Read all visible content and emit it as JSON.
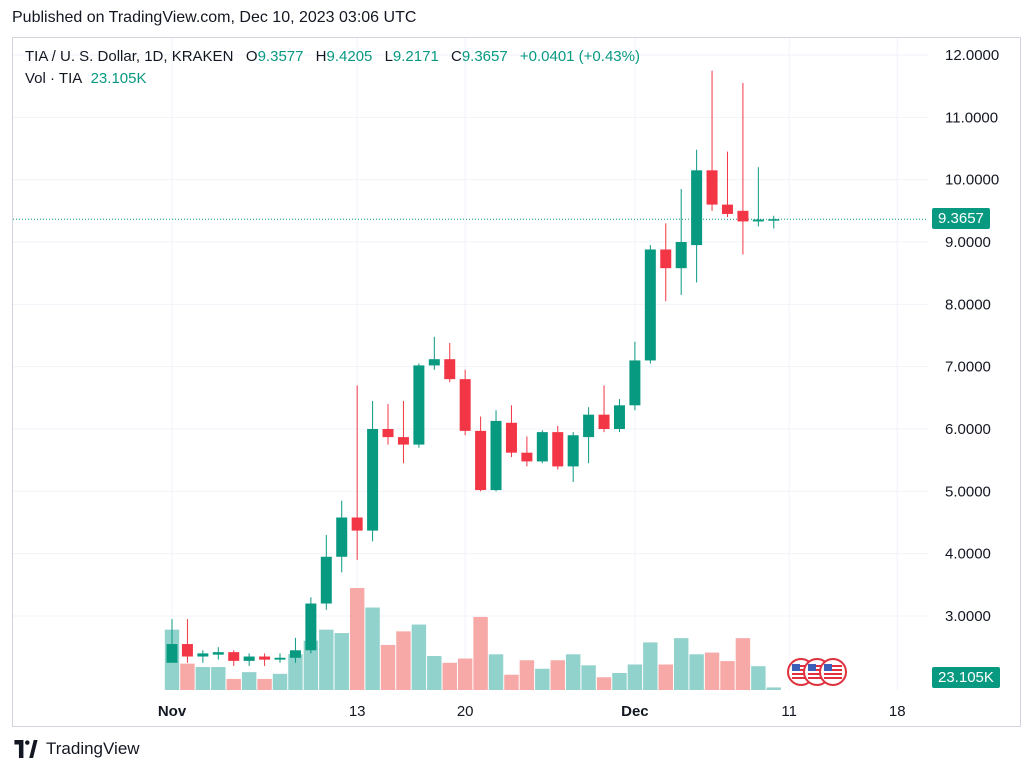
{
  "published": "Published on TradingView.com, Dec 10, 2023 03:06 UTC",
  "legend": {
    "title": "TIA / U. S. Dollar, 1D, KRAKEN",
    "open_label": "O",
    "open": "9.3577",
    "high_label": "H",
    "high": "9.4205",
    "low_label": "L",
    "low": "9.2171",
    "close_label": "C",
    "close": "9.3657",
    "change": "+0.0401 (+0.43%)",
    "vol_label": "Vol · TIA",
    "vol_value": "23.105K"
  },
  "last_price_label": "9.3657",
  "last_volume_label": "23.105K",
  "footer_brand": "TradingView",
  "colors": {
    "up": "#089981",
    "down": "#f23645",
    "vol_up": "#92d2cc",
    "vol_down": "#f7a9a7"
  },
  "chart_data": {
    "type": "candlestick",
    "ylim": [
      2,
      12
    ],
    "y_ticks": [
      "12.0000",
      "11.0000",
      "10.0000",
      "9.0000",
      "8.0000",
      "7.0000",
      "6.0000",
      "5.0000",
      "4.0000",
      "3.0000"
    ],
    "x_ticks": [
      {
        "label": "Nov",
        "date": "2023-11-01"
      },
      {
        "label": "13",
        "date": "2023-11-13"
      },
      {
        "label": "20",
        "date": "2023-11-20"
      },
      {
        "label": "Dec",
        "date": "2023-12-01"
      },
      {
        "label": "11",
        "date": "2023-12-11"
      },
      {
        "label": "18",
        "date": "2023-12-18"
      }
    ],
    "candles": [
      {
        "date": "2023-11-01",
        "o": 2.25,
        "h": 2.95,
        "l": 2.25,
        "c": 2.55
      },
      {
        "date": "2023-11-02",
        "o": 2.55,
        "h": 2.95,
        "l": 2.25,
        "c": 2.35
      },
      {
        "date": "2023-11-03",
        "o": 2.35,
        "h": 2.45,
        "l": 2.25,
        "c": 2.4
      },
      {
        "date": "2023-11-04",
        "o": 2.38,
        "h": 2.5,
        "l": 2.3,
        "c": 2.42
      },
      {
        "date": "2023-11-05",
        "o": 2.42,
        "h": 2.45,
        "l": 2.2,
        "c": 2.28
      },
      {
        "date": "2023-11-06",
        "o": 2.28,
        "h": 2.4,
        "l": 2.2,
        "c": 2.35
      },
      {
        "date": "2023-11-07",
        "o": 2.35,
        "h": 2.4,
        "l": 2.2,
        "c": 2.3
      },
      {
        "date": "2023-11-08",
        "o": 2.3,
        "h": 2.4,
        "l": 2.25,
        "c": 2.33
      },
      {
        "date": "2023-11-09",
        "o": 2.33,
        "h": 2.65,
        "l": 2.25,
        "c": 2.45
      },
      {
        "date": "2023-11-10",
        "o": 2.45,
        "h": 3.3,
        "l": 2.4,
        "c": 3.2
      },
      {
        "date": "2023-11-11",
        "o": 3.2,
        "h": 4.3,
        "l": 3.1,
        "c": 3.95
      },
      {
        "date": "2023-11-12",
        "o": 3.95,
        "h": 4.85,
        "l": 3.7,
        "c": 4.58
      },
      {
        "date": "2023-11-13",
        "o": 4.58,
        "h": 6.7,
        "l": 3.9,
        "c": 4.37
      },
      {
        "date": "2023-11-14",
        "o": 4.37,
        "h": 6.45,
        "l": 4.2,
        "c": 6.0
      },
      {
        "date": "2023-11-15",
        "o": 6.0,
        "h": 6.4,
        "l": 5.75,
        "c": 5.87
      },
      {
        "date": "2023-11-16",
        "o": 5.87,
        "h": 6.45,
        "l": 5.45,
        "c": 5.75
      },
      {
        "date": "2023-11-17",
        "o": 5.75,
        "h": 7.05,
        "l": 5.7,
        "c": 7.02
      },
      {
        "date": "2023-11-18",
        "o": 7.02,
        "h": 7.48,
        "l": 6.95,
        "c": 7.12
      },
      {
        "date": "2023-11-19",
        "o": 7.12,
        "h": 7.38,
        "l": 6.75,
        "c": 6.8
      },
      {
        "date": "2023-11-20",
        "o": 6.8,
        "h": 6.95,
        "l": 5.9,
        "c": 5.97
      },
      {
        "date": "2023-11-21",
        "o": 5.97,
        "h": 6.2,
        "l": 5.0,
        "c": 5.02
      },
      {
        "date": "2023-11-22",
        "o": 5.02,
        "h": 6.3,
        "l": 5.0,
        "c": 6.13
      },
      {
        "date": "2023-11-23",
        "o": 6.1,
        "h": 6.38,
        "l": 5.55,
        "c": 5.62
      },
      {
        "date": "2023-11-24",
        "o": 5.62,
        "h": 5.88,
        "l": 5.4,
        "c": 5.48
      },
      {
        "date": "2023-11-25",
        "o": 5.48,
        "h": 5.98,
        "l": 5.45,
        "c": 5.95
      },
      {
        "date": "2023-11-26",
        "o": 5.95,
        "h": 6.05,
        "l": 5.35,
        "c": 5.4
      },
      {
        "date": "2023-11-27",
        "o": 5.4,
        "h": 5.95,
        "l": 5.15,
        "c": 5.9
      },
      {
        "date": "2023-11-28",
        "o": 5.87,
        "h": 6.35,
        "l": 5.45,
        "c": 6.23
      },
      {
        "date": "2023-11-29",
        "o": 6.23,
        "h": 6.7,
        "l": 5.95,
        "c": 6.0
      },
      {
        "date": "2023-11-30",
        "o": 6.0,
        "h": 6.48,
        "l": 5.95,
        "c": 6.38
      },
      {
        "date": "2023-12-01",
        "o": 6.38,
        "h": 7.4,
        "l": 6.3,
        "c": 7.1
      },
      {
        "date": "2023-12-02",
        "o": 7.1,
        "h": 8.95,
        "l": 7.05,
        "c": 8.88
      },
      {
        "date": "2023-12-03",
        "o": 8.88,
        "h": 9.3,
        "l": 8.05,
        "c": 8.58
      },
      {
        "date": "2023-12-04",
        "o": 8.58,
        "h": 9.85,
        "l": 8.15,
        "c": 9.0
      },
      {
        "date": "2023-12-05",
        "o": 8.95,
        "h": 10.48,
        "l": 8.35,
        "c": 10.15
      },
      {
        "date": "2023-12-06",
        "o": 10.15,
        "h": 11.75,
        "l": 9.5,
        "c": 9.6
      },
      {
        "date": "2023-12-07",
        "o": 9.6,
        "h": 10.45,
        "l": 9.4,
        "c": 9.45
      },
      {
        "date": "2023-12-08",
        "o": 9.5,
        "h": 11.55,
        "l": 8.8,
        "c": 9.33
      },
      {
        "date": "2023-12-09",
        "o": 9.33,
        "h": 10.2,
        "l": 9.25,
        "c": 9.36
      },
      {
        "date": "2023-12-10",
        "o": 9.3577,
        "h": 9.4205,
        "l": 9.2171,
        "c": 9.3657
      }
    ],
    "volume_relative": [
      0.71,
      0.31,
      0.27,
      0.27,
      0.13,
      0.21,
      0.13,
      0.19,
      0.42,
      0.58,
      0.71,
      0.67,
      1.2,
      0.97,
      0.53,
      0.69,
      0.77,
      0.4,
      0.32,
      0.37,
      0.86,
      0.42,
      0.18,
      0.35,
      0.25,
      0.35,
      0.42,
      0.29,
      0.15,
      0.2,
      0.3,
      0.56,
      0.3,
      0.61,
      0.42,
      0.44,
      0.34,
      0.61,
      0.28,
      0.03
    ]
  }
}
